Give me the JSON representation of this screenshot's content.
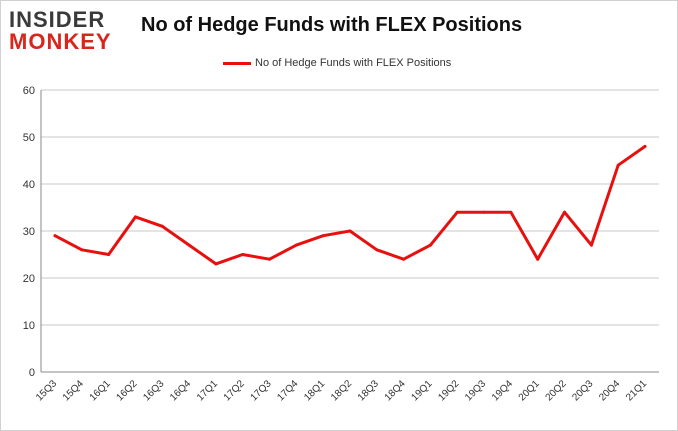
{
  "header": {
    "logo_line1": "INSIDER",
    "logo_line2": "MONKEY"
  },
  "chart_data": {
    "type": "line",
    "title": "No of Hedge Funds with FLEX Positions",
    "xlabel": "",
    "ylabel": "",
    "ylim": [
      0,
      60
    ],
    "yticks": [
      0,
      10,
      20,
      30,
      40,
      50,
      60
    ],
    "grid": true,
    "legend": "top-center",
    "categories": [
      "15Q3",
      "15Q4",
      "16Q1",
      "16Q2",
      "16Q3",
      "16Q4",
      "17Q1",
      "17Q2",
      "17Q3",
      "17Q4",
      "18Q1",
      "18Q2",
      "18Q3",
      "18Q4",
      "19Q1",
      "19Q2",
      "19Q3",
      "19Q4",
      "20Q1",
      "20Q2",
      "20Q3",
      "20Q4",
      "21Q1"
    ],
    "series": [
      {
        "name": "No of Hedge Funds with FLEX Positions",
        "color": "#e8100e",
        "values": [
          29,
          26,
          25,
          33,
          31,
          27,
          23,
          25,
          24,
          27,
          29,
          30,
          26,
          24,
          27,
          34,
          34,
          34,
          24,
          34,
          27,
          44,
          48
        ]
      }
    ]
  }
}
